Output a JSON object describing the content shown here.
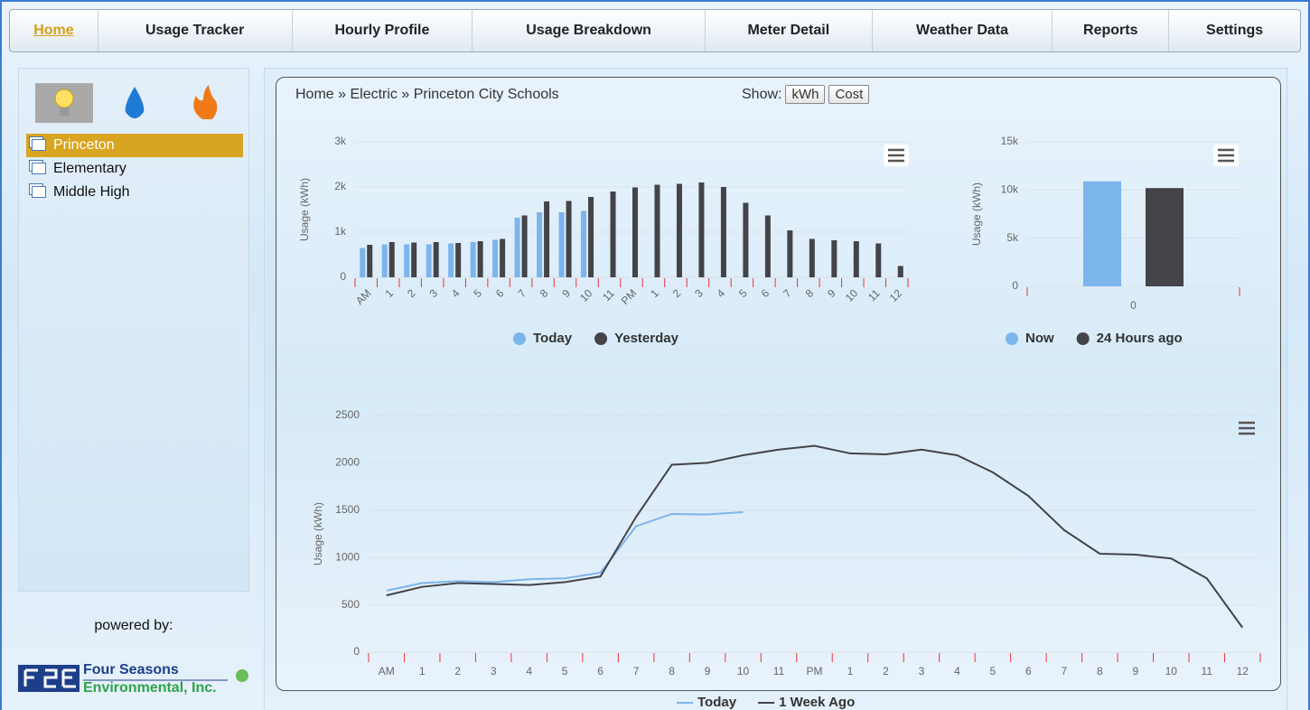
{
  "nav": [
    "Home",
    "Usage Tracker",
    "Hourly Profile",
    "Usage Breakdown",
    "Meter Detail",
    "Weather Data",
    "Reports",
    "Settings"
  ],
  "sidebar": {
    "items": [
      "Princeton",
      "Elementary",
      "Middle High"
    ],
    "powered_by": "powered by:",
    "logo": [
      "Four Seasons",
      "Environmental, Inc."
    ]
  },
  "breadcrumb": "Home » Electric » Princeton City Schools",
  "show": {
    "label": "Show:",
    "options": [
      "kWh",
      "Cost"
    ]
  },
  "chart_data": [
    {
      "type": "bar",
      "ylabel": "Usage (kWh)",
      "categories": [
        "AM",
        "1",
        "2",
        "3",
        "4",
        "5",
        "6",
        "7",
        "8",
        "9",
        "10",
        "11",
        "PM",
        "1",
        "2",
        "3",
        "4",
        "5",
        "6",
        "7",
        "8",
        "9",
        "10",
        "11",
        "12"
      ],
      "series": [
        {
          "name": "Today",
          "color": "#7cb5ec",
          "values": [
            650,
            730,
            730,
            730,
            750,
            780,
            830,
            1320,
            1440,
            1440,
            1470,
            null,
            null,
            null,
            null,
            null,
            null,
            null,
            null,
            null,
            null,
            null,
            null,
            null,
            null
          ]
        },
        {
          "name": "Yesterday",
          "color": "#434348",
          "values": [
            720,
            780,
            770,
            780,
            760,
            800,
            850,
            1370,
            1680,
            1690,
            1780,
            1900,
            1990,
            2050,
            2070,
            2100,
            2000,
            1650,
            1370,
            1040,
            850,
            820,
            800,
            750,
            250
          ]
        }
      ],
      "ylim": [
        0,
        3000
      ],
      "yticks": [
        0,
        {
          "value": 1000,
          "label": "1k"
        },
        {
          "value": 2000,
          "label": "2k"
        },
        {
          "value": 3000,
          "label": "3k"
        }
      ],
      "grid": true
    },
    {
      "type": "bar",
      "ylabel": "Usage (kWh)",
      "categories": [
        "0"
      ],
      "series": [
        {
          "name": "Now",
          "color": "#7cb5ec",
          "values": [
            10900
          ]
        },
        {
          "name": "24 Hours ago",
          "color": "#434348",
          "values": [
            10200
          ]
        }
      ],
      "ylim": [
        0,
        15000
      ],
      "yticks": [
        0,
        {
          "value": 5000,
          "label": "5k"
        },
        {
          "value": 10000,
          "label": "10k"
        },
        {
          "value": 15000,
          "label": "15k"
        }
      ],
      "grid": true
    },
    {
      "type": "line",
      "ylabel": "Usage (kWh)",
      "categories": [
        "AM",
        "1",
        "2",
        "3",
        "4",
        "5",
        "6",
        "7",
        "8",
        "9",
        "10",
        "11",
        "PM",
        "1",
        "2",
        "3",
        "4",
        "5",
        "6",
        "7",
        "8",
        "9",
        "10",
        "11",
        "12"
      ],
      "series": [
        {
          "name": "Today",
          "color": "#7cb5ec",
          "values": [
            650,
            730,
            750,
            740,
            770,
            780,
            840,
            1330,
            1460,
            1455,
            1480,
            null,
            null,
            null,
            null,
            null,
            null,
            null,
            null,
            null,
            null,
            null,
            null,
            null,
            null
          ]
        },
        {
          "name": "1 Week Ago",
          "color": "#434348",
          "values": [
            600,
            690,
            730,
            720,
            710,
            740,
            800,
            1430,
            1980,
            2000,
            2080,
            2140,
            2180,
            2100,
            2090,
            2140,
            2080,
            1900,
            1650,
            1290,
            1040,
            1030,
            990,
            780,
            260
          ]
        }
      ],
      "ylim": [
        0,
        2500
      ],
      "yticks": [
        0,
        500,
        1000,
        1500,
        2000,
        2500
      ],
      "grid": true
    }
  ]
}
